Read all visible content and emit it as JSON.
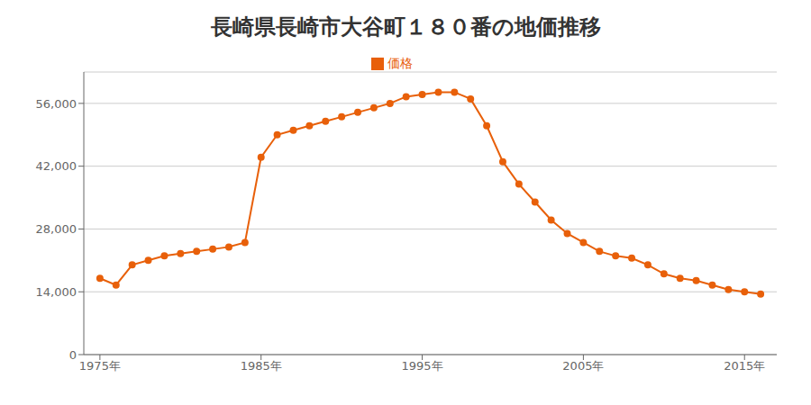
{
  "chart_data": {
    "type": "line",
    "title": "長崎県長崎市大谷町１８０番の地価推移",
    "x": [
      1975,
      1976,
      1977,
      1978,
      1979,
      1980,
      1981,
      1982,
      1983,
      1984,
      1985,
      1986,
      1987,
      1988,
      1989,
      1990,
      1991,
      1992,
      1993,
      1994,
      1995,
      1996,
      1997,
      1998,
      1999,
      2000,
      2001,
      2002,
      2003,
      2004,
      2005,
      2006,
      2007,
      2008,
      2009,
      2010,
      2011,
      2012,
      2013,
      2014,
      2015,
      2016
    ],
    "series": [
      {
        "name": "価格",
        "color": "#E8600A",
        "marker": "circle",
        "values": [
          17000,
          15500,
          20000,
          21000,
          22000,
          22500,
          23000,
          23500,
          24000,
          25000,
          44000,
          49000,
          50000,
          51000,
          52000,
          53000,
          54000,
          55000,
          56000,
          57500,
          58000,
          58500,
          58500,
          57000,
          51000,
          43000,
          38000,
          34000,
          30000,
          27000,
          25000,
          23000,
          22000,
          21500,
          20000,
          18000,
          17000,
          16500,
          15500,
          14500,
          14000,
          13500
        ]
      }
    ],
    "xlim": [
      1974,
      2017
    ],
    "xticks": [
      {
        "value": 1975,
        "label": "1975年"
      },
      {
        "value": 1985,
        "label": "1985年"
      },
      {
        "value": 1995,
        "label": "1995年"
      },
      {
        "value": 2005,
        "label": "2005年"
      },
      {
        "value": 2015,
        "label": "2015年"
      }
    ],
    "ylim": [
      0,
      63000
    ],
    "yticks": [
      0,
      {
        "value": 14000,
        "label": "14,000"
      },
      {
        "value": 28000,
        "label": "28,000"
      },
      {
        "value": 42000,
        "label": "42,000"
      },
      {
        "value": 56000,
        "label": "56,000"
      }
    ],
    "grid": "y",
    "legend": "top"
  }
}
